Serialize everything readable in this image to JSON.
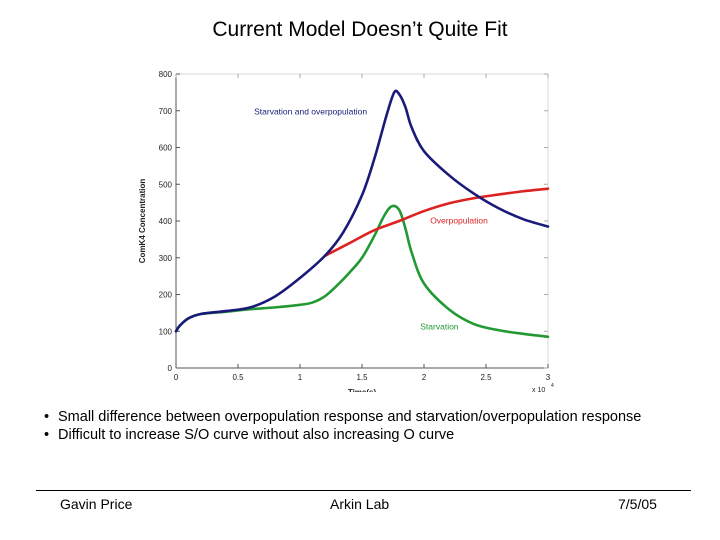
{
  "slide": {
    "title": "Current Model Doesn’t Quite Fit",
    "bullets": [
      "Small difference between overpopulation response and starvation/overpopulation response",
      "Difficult to increase S/O curve without also increasing O curve"
    ],
    "footer": {
      "left": "Gavin Price",
      "center": "Arkin Lab",
      "right": "7/5/05"
    }
  },
  "chart_data": {
    "type": "line",
    "title": "",
    "xlabel": "Time(s)",
    "ylabel": "ComK4 Concentration",
    "x_multiplier": "x 10",
    "x_multiplier_exp": "4",
    "xlim": [
      0,
      3
    ],
    "ylim": [
      0,
      800
    ],
    "xticks": [
      0,
      0.5,
      1,
      1.5,
      2,
      2.5,
      3
    ],
    "xtick_labels": [
      "0",
      "0.5",
      "1",
      "1.5",
      "2",
      "2.5",
      "3"
    ],
    "yticks": [
      0,
      100,
      200,
      300,
      400,
      500,
      600,
      700,
      800
    ],
    "ytick_labels": [
      "0",
      "100",
      "200",
      "300",
      "400",
      "500",
      "600",
      "700",
      "800"
    ],
    "grid": false,
    "series": [
      {
        "name": "Starvation and overpopulation",
        "color": "#1a1a7a",
        "label_at": [
          0.63,
          690
        ],
        "x": [
          0,
          0.03,
          0.1,
          0.2,
          0.4,
          0.6,
          0.8,
          1.0,
          1.2,
          1.35,
          1.5,
          1.6,
          1.7,
          1.76,
          1.8,
          1.85,
          1.9,
          2.0,
          2.2,
          2.4,
          2.6,
          2.8,
          3.0
        ],
        "values": [
          100,
          115,
          135,
          147,
          155,
          165,
          195,
          245,
          305,
          370,
          470,
          570,
          690,
          750,
          745,
          710,
          655,
          590,
          525,
          475,
          435,
          405,
          385
        ]
      },
      {
        "name": "Overpopulation",
        "color": "#dd2222",
        "label_at": [
          2.05,
          393
        ],
        "x": [
          1.2,
          1.4,
          1.6,
          1.8,
          2.0,
          2.2,
          2.4,
          2.6,
          2.8,
          3.0
        ],
        "values": [
          305,
          340,
          375,
          400,
          427,
          448,
          462,
          472,
          481,
          488
        ]
      },
      {
        "name": "Starvation",
        "color": "#229933",
        "label_at": [
          1.97,
          105
        ],
        "x": [
          0,
          0.03,
          0.1,
          0.2,
          0.4,
          0.6,
          0.8,
          1.0,
          1.1,
          1.2,
          1.3,
          1.4,
          1.5,
          1.6,
          1.68,
          1.74,
          1.8,
          1.85,
          1.9,
          2.0,
          2.2,
          2.4,
          2.6,
          2.8,
          3.0
        ],
        "values": [
          100,
          115,
          135,
          147,
          153,
          160,
          165,
          172,
          178,
          195,
          225,
          260,
          300,
          360,
          415,
          440,
          430,
          380,
          315,
          230,
          160,
          120,
          103,
          93,
          85
        ]
      }
    ]
  }
}
